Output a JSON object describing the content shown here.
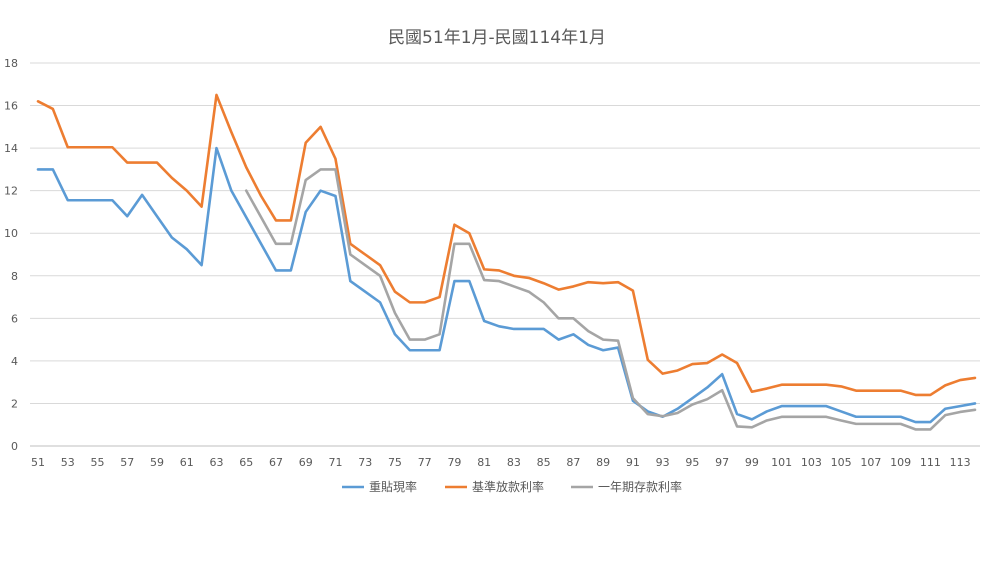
{
  "chart_data": {
    "type": "line",
    "title": "民國51年1月-民國114年1月",
    "xlabel": "",
    "ylabel": "",
    "x": [
      51,
      52,
      53,
      54,
      55,
      56,
      57,
      58,
      59,
      60,
      61,
      62,
      63,
      64,
      65,
      66,
      67,
      68,
      69,
      70,
      71,
      72,
      73,
      74,
      75,
      76,
      77,
      78,
      79,
      80,
      81,
      82,
      83,
      84,
      85,
      86,
      87,
      88,
      89,
      90,
      91,
      92,
      93,
      94,
      95,
      96,
      97,
      98,
      99,
      100,
      101,
      102,
      103,
      104,
      105,
      106,
      107,
      108,
      109,
      110,
      111,
      112,
      113,
      114
    ],
    "x_tick_labels": [
      "51",
      "53",
      "55",
      "57",
      "59",
      "61",
      "63",
      "65",
      "67",
      "69",
      "71",
      "73",
      "75",
      "77",
      "79",
      "81",
      "83",
      "85",
      "87",
      "89",
      "91",
      "93",
      "95",
      "97",
      "99",
      "101",
      "103",
      "105",
      "107",
      "109",
      "111",
      "113"
    ],
    "ylim": [
      0,
      18
    ],
    "y_ticks": [
      0,
      2,
      4,
      6,
      8,
      10,
      12,
      14,
      16,
      18
    ],
    "y_tick_labels": [
      "0",
      "2",
      "4",
      "6",
      "8",
      "10",
      "12",
      "14",
      "16",
      "18"
    ],
    "grid": true,
    "legend_position": "bottom",
    "series": [
      {
        "name": "重貼現率",
        "color": "#5b9bd5",
        "values": [
          13,
          13,
          11.55,
          11.55,
          11.55,
          11.55,
          10.8,
          11.8,
          10.8,
          9.8,
          9.25,
          8.5,
          14,
          12,
          10.75,
          9.5,
          8.25,
          8.25,
          11,
          12,
          11.75,
          7.75,
          7.25,
          6.75,
          5.25,
          4.5,
          4.5,
          4.5,
          7.75,
          7.75,
          5.875,
          5.625,
          5.5,
          5.5,
          5.5,
          5,
          5.25,
          4.75,
          4.5,
          4.625,
          2.125,
          1.625,
          1.375,
          1.75,
          2.25,
          2.75,
          3.375,
          1.5,
          1.25,
          1.625,
          1.875,
          1.875,
          1.875,
          1.875,
          1.625,
          1.375,
          1.375,
          1.375,
          1.375,
          1.125,
          1.125,
          1.75,
          1.875,
          2
        ]
      },
      {
        "name": "基準放款利率",
        "color": "#ed7d31",
        "values": [
          16.2,
          15.84,
          14.04,
          14.04,
          14.04,
          14.04,
          13.32,
          13.32,
          13.32,
          12.6,
          12,
          11.25,
          16.5,
          14.75,
          13.1,
          11.75,
          10.6,
          10.6,
          14.25,
          15,
          13.5,
          9.5,
          9,
          8.5,
          7.25,
          6.75,
          6.75,
          7,
          10.4,
          10,
          8.3,
          8.25,
          8,
          7.9,
          7.65,
          7.35,
          7.5,
          7.7,
          7.65,
          7.7,
          7.3,
          4.05,
          3.4,
          3.55,
          3.85,
          3.9,
          4.3,
          3.9,
          2.55,
          2.7,
          2.88,
          2.88,
          2.88,
          2.88,
          2.8,
          2.6,
          2.6,
          2.6,
          2.6,
          2.4,
          2.4,
          2.85,
          3.1,
          3.2
        ]
      },
      {
        "name": "一年期存款利率",
        "color": "#a5a5a5",
        "values": [
          null,
          null,
          null,
          null,
          null,
          null,
          null,
          null,
          null,
          null,
          null,
          null,
          null,
          null,
          12,
          10.75,
          9.5,
          9.5,
          12.5,
          13,
          13,
          9,
          8.5,
          8,
          6.25,
          5,
          5,
          5.25,
          9.5,
          9.5,
          7.8,
          7.75,
          7.5,
          7.25,
          6.75,
          6,
          6,
          5.4,
          5,
          4.95,
          2.25,
          1.5,
          1.4,
          1.55,
          1.95,
          2.2,
          2.62,
          0.92,
          0.88,
          1.2,
          1.37,
          1.37,
          1.37,
          1.37,
          1.2,
          1.04,
          1.04,
          1.04,
          1.04,
          0.78,
          0.78,
          1.45,
          1.6,
          1.7
        ]
      }
    ]
  }
}
